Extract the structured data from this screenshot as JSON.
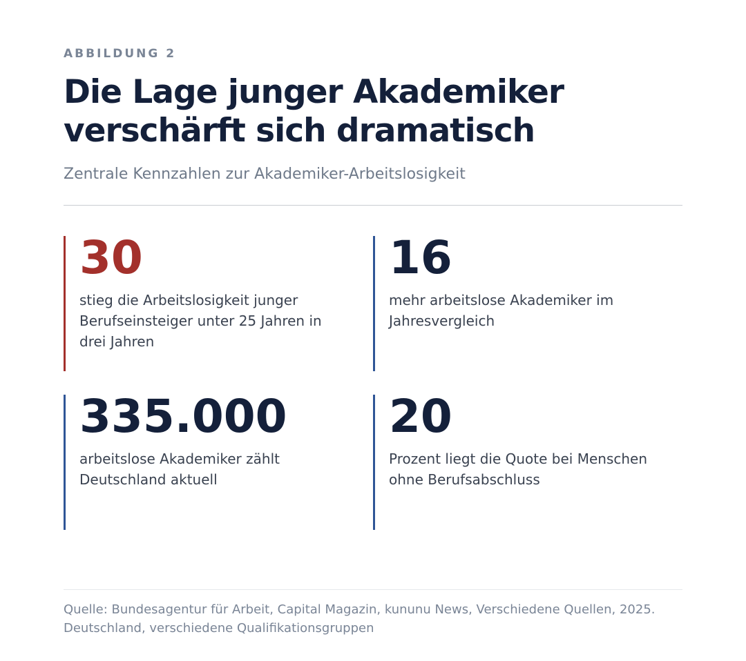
{
  "figure": {
    "eyebrow": "ABBILDUNG 2",
    "title": "Die Lage junger Akademiker verschärft sich dramatisch",
    "subtitle": "Zentrale Kennzahlen zur Akademiker-Arbeitslosigkeit",
    "stats": [
      {
        "value": "30",
        "text": "stieg die Arbeitslosigkeit junger Berufseinsteiger unter 25 Jahren in drei Jahren",
        "accent": "#a3302b"
      },
      {
        "value": "16",
        "text": "mehr arbeitslose Akademiker im Jahresvergleich",
        "accent": "#2f5596"
      },
      {
        "value": "335.000",
        "text": "arbeitslose Akademiker zählt Deutschland aktuell",
        "accent": "#2f5596"
      },
      {
        "value": "20",
        "text": "Prozent liegt die Quote bei Menschen ohne Berufsabschluss",
        "accent": "#2f5596"
      }
    ],
    "source": "Quelle: Bundesagentur für Arbeit, Capital Magazin, kununu News, Verschiedene Quellen, 2025. Deutschland, verschiedene Qualifikationsgruppen"
  },
  "colors": {
    "title": "#14203a",
    "accent_red": "#a3302b",
    "accent_blue": "#2f5596",
    "muted": "#7a8596"
  }
}
